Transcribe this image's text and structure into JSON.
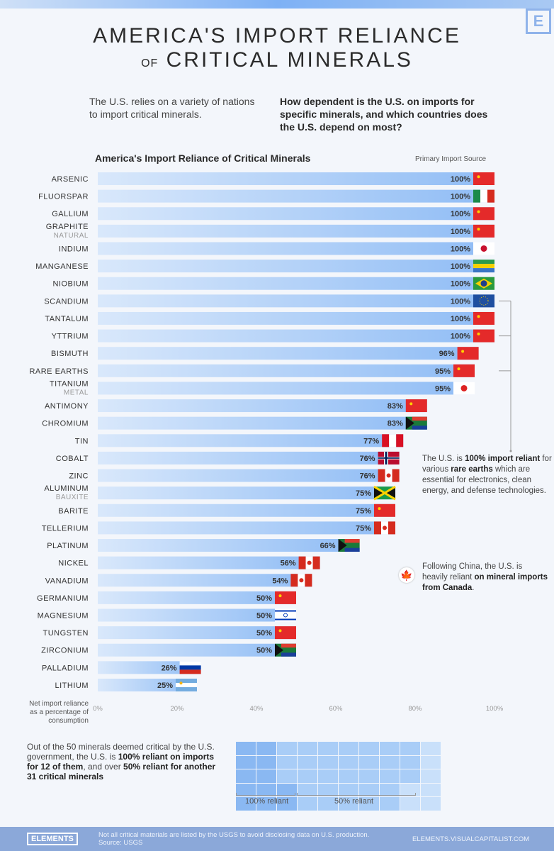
{
  "header": {
    "title_line1": "AMERICA'S IMPORT RELIANCE",
    "title_of": "OF",
    "title_line2": "CRITICAL MINERALS",
    "logo": "E",
    "intro_left": "The U.S. relies on a variety of nations to import critical minerals.",
    "intro_right": "How dependent is the U.S. on imports for specific minerals, and which countries does the U.S. depend on most?"
  },
  "chart_data": {
    "type": "bar",
    "orientation": "horizontal",
    "title": "America's Import Reliance of Critical Minerals",
    "source_header": "Primary Import Source",
    "xlabel": "Net import reliance as a percentage of consumption",
    "xlim": [
      0,
      100
    ],
    "xticks": [
      "0%",
      "20%",
      "40%",
      "60%",
      "80%",
      "100%"
    ],
    "bar_color": "#8fbcf5",
    "items": [
      {
        "name": "ARSENIC",
        "value": 100,
        "source": "China"
      },
      {
        "name": "FLUORSPAR",
        "value": 100,
        "source": "Mexico"
      },
      {
        "name": "GALLIUM",
        "value": 100,
        "source": "China"
      },
      {
        "name": "GRAPHITE",
        "sub": "NATURAL",
        "value": 100,
        "source": "China"
      },
      {
        "name": "INDIUM",
        "value": 100,
        "source": "South Korea"
      },
      {
        "name": "MANGANESE",
        "value": 100,
        "source": "Gabon"
      },
      {
        "name": "NIOBIUM",
        "value": 100,
        "source": "Brazil"
      },
      {
        "name": "SCANDIUM",
        "value": 100,
        "source": "European Union"
      },
      {
        "name": "TANTALUM",
        "value": 100,
        "source": "China"
      },
      {
        "name": "YTTRIUM",
        "value": 100,
        "source": "China"
      },
      {
        "name": "BISMUTH",
        "value": 96,
        "source": "China"
      },
      {
        "name": "RARE EARTHS",
        "value": 95,
        "source": "China"
      },
      {
        "name": "TITANIUM",
        "sub": "METAL",
        "value": 95,
        "source": "Japan"
      },
      {
        "name": "ANTIMONY",
        "value": 83,
        "source": "China"
      },
      {
        "name": "CHROMIUM",
        "value": 83,
        "source": "South Africa"
      },
      {
        "name": "TIN",
        "value": 77,
        "source": "Peru"
      },
      {
        "name": "COBALT",
        "value": 76,
        "source": "Norway"
      },
      {
        "name": "ZINC",
        "value": 76,
        "source": "Canada"
      },
      {
        "name": "ALUMINUM",
        "sub": "BAUXITE",
        "value": 75,
        "source": "Jamaica"
      },
      {
        "name": "BARITE",
        "value": 75,
        "source": "China"
      },
      {
        "name": "TELLERIUM",
        "value": 75,
        "source": "Canada"
      },
      {
        "name": "PLATINUM",
        "value": 66,
        "source": "South Africa"
      },
      {
        "name": "NICKEL",
        "value": 56,
        "source": "Canada"
      },
      {
        "name": "VANADIUM",
        "value": 54,
        "source": "Canada"
      },
      {
        "name": "GERMANIUM",
        "value": 50,
        "source": "China"
      },
      {
        "name": "MAGNESIUM",
        "value": 50,
        "source": "Israel"
      },
      {
        "name": "TUNGSTEN",
        "value": 50,
        "source": "China"
      },
      {
        "name": "ZIRCONIUM",
        "value": 50,
        "source": "South Africa"
      },
      {
        "name": "PALLADIUM",
        "value": 26,
        "source": "Russia"
      },
      {
        "name": "LITHIUM",
        "value": 25,
        "source": "Argentina"
      }
    ]
  },
  "notes": {
    "rare_earths": {
      "pre": "The U.S. is ",
      "b1": "100% import reliant",
      "mid": " for various ",
      "b2": "rare earths",
      "post": " which are essential for electronics, clean energy, and defense technologies."
    },
    "canada": {
      "pre": "Following China, the U.S. is heavily reliant ",
      "b1": "on mineral imports from Canada",
      "post": "."
    }
  },
  "waffle": {
    "pre": "Out of the 50 minerals deemed critical by the U.S. government, the U.S. is ",
    "b1": "100% reliant on imports for 12 of them",
    "mid": ", and over ",
    "b2": "50% reliant for another 31 critical minerals",
    "total": 50,
    "reliant_100": 12,
    "reliant_50": 31,
    "label_100": "100% reliant",
    "label_50": "50% reliant",
    "colors": {
      "100": "#8ab8f2",
      "50": "#a9cdf7",
      "other": "#c9e0fa"
    }
  },
  "footer": {
    "logo": "ELEMENTS",
    "note": "Not all critical materials are listed by the USGS to avoid disclosing data on U.S. production.",
    "source": "Source: USGS",
    "url": "ELEMENTS.VISUALCAPITALIST.COM"
  }
}
